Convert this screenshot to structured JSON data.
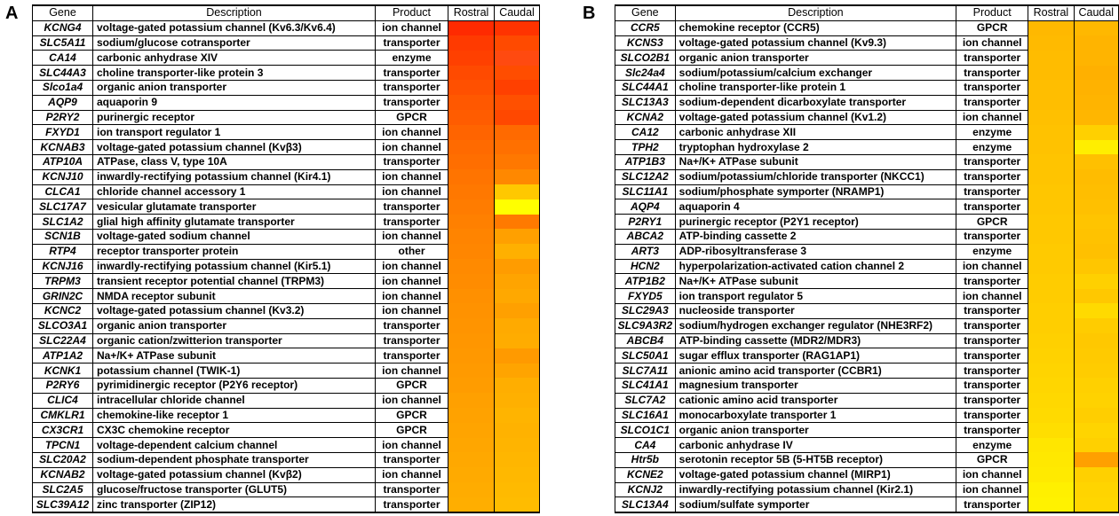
{
  "panels": [
    {
      "label": "A",
      "headers": {
        "gene": "Gene",
        "description": "Description",
        "product": "Product",
        "rostral": "Rostral",
        "caudal": "Caudal"
      },
      "rows": [
        {
          "gene": "KCNG4",
          "description": "voltage-gated potassium channel (Kv6.3/Kv6.4)",
          "product": "ion channel",
          "rostral": "#ff2a00",
          "caudal": "#ff3300"
        },
        {
          "gene": "SLC5A11",
          "description": "sodium/glucose cotransporter",
          "product": "transporter",
          "rostral": "#ff3a00",
          "caudal": "#ff4a00"
        },
        {
          "gene": "CA14",
          "description": "carbonic anhydrase XIV",
          "product": "enzyme",
          "rostral": "#ff4000",
          "caudal": "#ff4a10"
        },
        {
          "gene": "SLC44A3",
          "description": "choline transporter-like protein 3",
          "product": "transporter",
          "rostral": "#ff4a00",
          "caudal": "#ff4d00"
        },
        {
          "gene": "Slco1a4",
          "description": "organic anion transporter",
          "product": "transporter",
          "rostral": "#ff5000",
          "caudal": "#ff4000"
        },
        {
          "gene": "AQP9",
          "description": "aquaporin 9",
          "product": "transporter",
          "rostral": "#ff5800",
          "caudal": "#ff5000"
        },
        {
          "gene": "P2RY2",
          "description": "purinergic receptor",
          "product": "GPCR",
          "rostral": "#ff5c00",
          "caudal": "#ff4800"
        },
        {
          "gene": "FXYD1",
          "description": "ion transport regulator 1",
          "product": "ion channel",
          "rostral": "#ff6400",
          "caudal": "#ff6a00"
        },
        {
          "gene": "KCNAB3",
          "description": "voltage-gated potassium channel (Kvβ3)",
          "product": "ion channel",
          "rostral": "#ff6a00",
          "caudal": "#ff7000"
        },
        {
          "gene": "ATP10A",
          "description": "ATPase, class V, type 10A",
          "product": "transporter",
          "rostral": "#ff6e00",
          "caudal": "#ff7800"
        },
        {
          "gene": "KCNJ10",
          "description": "inwardly-rectifying potassium channel (Kir4.1)",
          "product": "ion channel",
          "rostral": "#ff7400",
          "caudal": "#ff8800"
        },
        {
          "gene": "CLCA1",
          "description": "chloride channel accessory 1",
          "product": "ion channel",
          "rostral": "#ff7800",
          "caudal": "#ffc800"
        },
        {
          "gene": "SLC17A7",
          "description": "vesicular glutamate transporter",
          "product": "transporter",
          "rostral": "#ff7c00",
          "caudal": "#ffff00"
        },
        {
          "gene": "SLC1A2",
          "description": "glial high affinity glutamate transporter",
          "product": "transporter",
          "rostral": "#ff8000",
          "caudal": "#ff7a00"
        },
        {
          "gene": "SCN1B",
          "description": "voltage-gated sodium channel",
          "product": "ion channel",
          "rostral": "#ff8400",
          "caudal": "#ffa000"
        },
        {
          "gene": "RTP4",
          "description": "receptor transporter protein",
          "product": "other",
          "rostral": "#ff8600",
          "caudal": "#ffb000"
        },
        {
          "gene": "KCNJ16",
          "description": "inwardly-rectifying potassium channel (Kir5.1)",
          "product": "ion channel",
          "rostral": "#ff8a00",
          "caudal": "#ff9c00"
        },
        {
          "gene": "TRPM3",
          "description": "transient receptor potential channel (TRPM3)",
          "product": "ion channel",
          "rostral": "#ff8c00",
          "caudal": "#ffa400"
        },
        {
          "gene": "GRIN2C",
          "description": "NMDA receptor subunit",
          "product": "ion channel",
          "rostral": "#ff9000",
          "caudal": "#ffa800"
        },
        {
          "gene": "KCNC2",
          "description": "voltage-gated potassium channel (Kv3.2)",
          "product": "ion channel",
          "rostral": "#ff9200",
          "caudal": "#ffa000"
        },
        {
          "gene": "SLCO3A1",
          "description": "organic anion transporter",
          "product": "transporter",
          "rostral": "#ff9400",
          "caudal": "#ffaa00"
        },
        {
          "gene": "SLC22A4",
          "description": "organic cation/zwitterion transporter",
          "product": "transporter",
          "rostral": "#ff9600",
          "caudal": "#ffac00"
        },
        {
          "gene": "ATP1A2",
          "description": "Na+/K+ ATPase subunit",
          "product": "transporter",
          "rostral": "#ff9800",
          "caudal": "#ff9a00"
        },
        {
          "gene": "KCNK1",
          "description": "potassium channel (TWIK-1)",
          "product": "ion channel",
          "rostral": "#ff9a00",
          "caudal": "#ffa400"
        },
        {
          "gene": "P2RY6",
          "description": "pyrimidinergic receptor (P2Y6 receptor)",
          "product": "GPCR",
          "rostral": "#ff9c00",
          "caudal": "#ffae00"
        },
        {
          "gene": "CLIC4",
          "description": "intracellular chloride channel",
          "product": "ion channel",
          "rostral": "#ffa000",
          "caudal": "#ffb000"
        },
        {
          "gene": "CMKLR1",
          "description": "chemokine-like receptor 1",
          "product": "GPCR",
          "rostral": "#ffa200",
          "caudal": "#ffb400"
        },
        {
          "gene": "CX3CR1",
          "description": "CX3C chemokine receptor",
          "product": "GPCR",
          "rostral": "#ffa400",
          "caudal": "#ffb200"
        },
        {
          "gene": "TPCN1",
          "description": "voltage-dependent calcium channel",
          "product": "ion channel",
          "rostral": "#ffa600",
          "caudal": "#ffb400"
        },
        {
          "gene": "SLC20A2",
          "description": "sodium-dependent phosphate transporter",
          "product": "transporter",
          "rostral": "#ffa800",
          "caudal": "#ffb600"
        },
        {
          "gene": "KCNAB2",
          "description": "voltage-gated potassium channel (Kvβ2)",
          "product": "ion channel",
          "rostral": "#ffaa00",
          "caudal": "#ffb800"
        },
        {
          "gene": "SLC2A5",
          "description": "glucose/fructose transporter (GLUT5)",
          "product": "transporter",
          "rostral": "#ffac00",
          "caudal": "#ffba00"
        },
        {
          "gene": "SLC39A12",
          "description": "zinc transporter (ZIP12)",
          "product": "transporter",
          "rostral": "#ffae00",
          "caudal": "#ffbc00"
        }
      ]
    },
    {
      "label": "B",
      "headers": {
        "gene": "Gene",
        "description": "Description",
        "product": "Product",
        "rostral": "Rostral",
        "caudal": "Caudal"
      },
      "rows": [
        {
          "gene": "CCR5",
          "description": "chemokine receptor (CCR5)",
          "product": "GPCR",
          "rostral": "#ffb800",
          "caudal": "#ffb800"
        },
        {
          "gene": "KCNS3",
          "description": "voltage-gated potassium channel (Kv9.3)",
          "product": "ion channel",
          "rostral": "#ffba00",
          "caudal": "#ffb400"
        },
        {
          "gene": "SLCO2B1",
          "description": "organic anion transporter",
          "product": "transporter",
          "rostral": "#ffbc00",
          "caudal": "#ffb400"
        },
        {
          "gene": "Slc24a4",
          "description": "sodium/potassium/calcium exchanger",
          "product": "transporter",
          "rostral": "#ffbc00",
          "caudal": "#ffb000"
        },
        {
          "gene": "SLC44A1",
          "description": "choline transporter-like protein 1",
          "product": "transporter",
          "rostral": "#ffbe00",
          "caudal": "#ffb200"
        },
        {
          "gene": "SLC13A3",
          "description": "sodium-dependent dicarboxylate transporter",
          "product": "transporter",
          "rostral": "#ffbe00",
          "caudal": "#ffb400"
        },
        {
          "gene": "KCNA2",
          "description": "voltage-gated potassium channel (Kv1.2)",
          "product": "ion channel",
          "rostral": "#ffc000",
          "caudal": "#ffb600"
        },
        {
          "gene": "CA12",
          "description": "carbonic anhydrase XII",
          "product": "enzyme",
          "rostral": "#ffc200",
          "caudal": "#ffd000"
        },
        {
          "gene": "TPH2",
          "description": "tryptophan hydroxylase 2",
          "product": "enzyme",
          "rostral": "#ffc200",
          "caudal": "#ffee00"
        },
        {
          "gene": "ATP1B3",
          "description": "Na+/K+ ATPase subunit",
          "product": "transporter",
          "rostral": "#ffc400",
          "caudal": "#ffc000"
        },
        {
          "gene": "SLC12A2",
          "description": "sodium/potassium/chloride transporter (NKCC1)",
          "product": "transporter",
          "rostral": "#ffc400",
          "caudal": "#ffbc00"
        },
        {
          "gene": "SLC11A1",
          "description": "sodium/phosphate symporter (NRAMP1)",
          "product": "transporter",
          "rostral": "#ffc600",
          "caudal": "#ffbe00"
        },
        {
          "gene": "AQP4",
          "description": "aquaporin 4",
          "product": "transporter",
          "rostral": "#ffc600",
          "caudal": "#ffc000"
        },
        {
          "gene": "P2RY1",
          "description": "purinergic receptor (P2Y1 receptor)",
          "product": "GPCR",
          "rostral": "#ffc800",
          "caudal": "#ffc400"
        },
        {
          "gene": "ABCA2",
          "description": "ATP-binding cassette 2",
          "product": "transporter",
          "rostral": "#ffc800",
          "caudal": "#ffc200"
        },
        {
          "gene": "ART3",
          "description": "ADP-ribosyltransferase 3",
          "product": "enzyme",
          "rostral": "#ffca00",
          "caudal": "#ffc000"
        },
        {
          "gene": "HCN2",
          "description": "hyperpolarization-activated cation channel 2",
          "product": "ion channel",
          "rostral": "#ffca00",
          "caudal": "#ffc600"
        },
        {
          "gene": "ATP1B2",
          "description": "Na+/K+ ATPase subunit",
          "product": "transporter",
          "rostral": "#ffcc00",
          "caudal": "#ffd000"
        },
        {
          "gene": "FXYD5",
          "description": "ion transport regulator 5",
          "product": "ion channel",
          "rostral": "#ffcc00",
          "caudal": "#ffc800"
        },
        {
          "gene": "SLC29A3",
          "description": "nucleoside transporter",
          "product": "transporter",
          "rostral": "#ffce00",
          "caudal": "#ffda00"
        },
        {
          "gene": "SLC9A3R2",
          "description": "sodium/hydrogen exchanger regulator (NHE3RF2)",
          "product": "transporter",
          "rostral": "#ffce00",
          "caudal": "#ffcc00"
        },
        {
          "gene": "ABCB4",
          "description": "ATP-binding cassette (MDR2/MDR3)",
          "product": "transporter",
          "rostral": "#ffd000",
          "caudal": "#ffc800"
        },
        {
          "gene": "SLC50A1",
          "description": "sugar efflux transporter (RAG1AP1)",
          "product": "transporter",
          "rostral": "#ffd200",
          "caudal": "#ffca00"
        },
        {
          "gene": "SLC7A11",
          "description": "anionic amino acid transporter (CCBR1)",
          "product": "transporter",
          "rostral": "#ffd400",
          "caudal": "#ffcc00"
        },
        {
          "gene": "SLC41A1",
          "description": "magnesium transporter",
          "product": "transporter",
          "rostral": "#ffd600",
          "caudal": "#ffd000"
        },
        {
          "gene": "SLC7A2",
          "description": "cationic amino acid transporter",
          "product": "transporter",
          "rostral": "#ffd800",
          "caudal": "#ffd200"
        },
        {
          "gene": "SLC16A1",
          "description": "monocarboxylate transporter 1",
          "product": "transporter",
          "rostral": "#ffda00",
          "caudal": "#ffce00"
        },
        {
          "gene": "SLCO1C1",
          "description": "organic anion transporter",
          "product": "transporter",
          "rostral": "#ffde00",
          "caudal": "#ffd400"
        },
        {
          "gene": "CA4",
          "description": "carbonic anhydrase IV",
          "product": "enzyme",
          "rostral": "#ffe600",
          "caudal": "#ffd000"
        },
        {
          "gene": "Htr5b",
          "description": "serotonin receptor 5B (5-HT5B receptor)",
          "product": "GPCR",
          "rostral": "#ffe800",
          "caudal": "#ffa000"
        },
        {
          "gene": "KCNE2",
          "description": "voltage-gated potassium channel (MIRP1)",
          "product": "ion channel",
          "rostral": "#ffea00",
          "caudal": "#ffd000"
        },
        {
          "gene": "KCNJ2",
          "description": "inwardly-rectifying potassium channel (Kir2.1)",
          "product": "ion channel",
          "rostral": "#fff000",
          "caudal": "#ffd400"
        },
        {
          "gene": "SLC13A4",
          "description": "sodium/sulfate symporter",
          "product": "transporter",
          "rostral": "#fff200",
          "caudal": "#ffd600"
        }
      ]
    }
  ]
}
